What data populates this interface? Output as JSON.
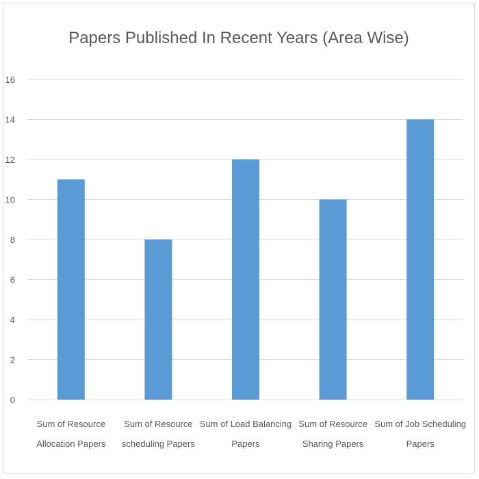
{
  "chart_data": {
    "type": "bar",
    "title": "Papers Published In Recent Years (Area Wise)",
    "xlabel": "",
    "ylabel": "",
    "ylim": [
      0,
      16
    ],
    "yticks": [
      0,
      2,
      4,
      6,
      8,
      10,
      12,
      14,
      16
    ],
    "grid": true,
    "legend": "none",
    "bar_color": "#5b9bd5",
    "categories": [
      [
        "Sum of Resource",
        "Allocation Papers"
      ],
      [
        "Sum of Resource",
        "scheduling Papers"
      ],
      [
        "Sum of Load Balancing",
        "Papers"
      ],
      [
        "Sum of Resource",
        "Sharing Papers"
      ],
      [
        "Sum of Job Scheduling",
        "Papers"
      ]
    ],
    "values": [
      11,
      8,
      12,
      10,
      14
    ]
  }
}
